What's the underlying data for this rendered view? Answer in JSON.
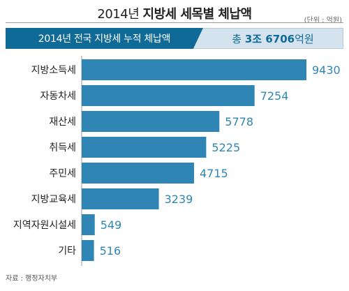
{
  "header": {
    "title_prefix": "2014년",
    "title_main": "지방세 세목별 체납액",
    "unit": "(단위 : 억원)"
  },
  "banner": {
    "label": "2014년 전국 지방세 누적 체납액",
    "total_prefix": "총",
    "total_bold": "3조 6706",
    "total_suffix": "억원"
  },
  "colors": {
    "bar": "#2f86b4",
    "banner_dark": "#0f6a97",
    "banner_light": "#d4e3ee",
    "value_text": "#2f86b4"
  },
  "chart_data": {
    "type": "bar",
    "orientation": "horizontal",
    "categories": [
      "지방소득세",
      "자동차세",
      "재산세",
      "취득세",
      "주민세",
      "지방교육세",
      "지역자원시설세",
      "기타"
    ],
    "values": [
      9430,
      7254,
      5778,
      5225,
      4715,
      3239,
      549,
      516
    ],
    "value_labels": [
      "9430",
      "7254",
      "5778",
      "5225",
      "4715",
      "3239",
      "549",
      "516"
    ],
    "xlim": [
      0,
      9430
    ],
    "grid": false,
    "legend": "none"
  },
  "footer": {
    "source": "자료 : 행정자치부"
  }
}
